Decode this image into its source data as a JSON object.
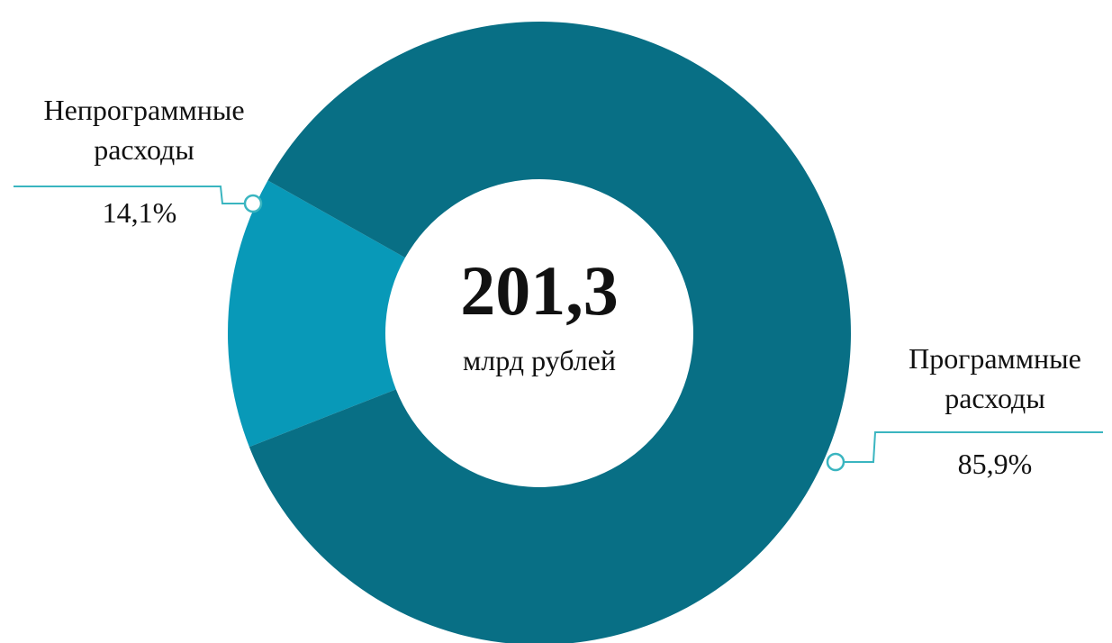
{
  "chart_data": {
    "type": "donut",
    "categories": [
      "Непрограммные расходы",
      "Программные расходы"
    ],
    "values": [
      14.1,
      85.9
    ],
    "value_labels": [
      "14,1%",
      "85,9%"
    ],
    "colors": [
      "#0899b8",
      "#086f85"
    ],
    "center_title": "201,3",
    "center_subtitle": "млрд рублей"
  }
}
